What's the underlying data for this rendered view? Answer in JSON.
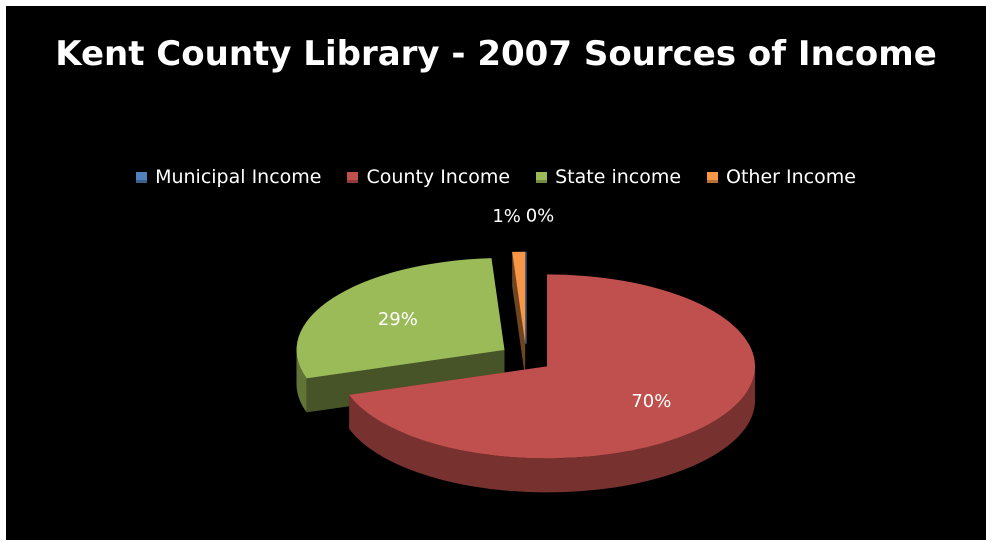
{
  "chart_data": {
    "type": "pie",
    "title": "Kent County Library - 2007 Sources of Income",
    "series": [
      {
        "name": "Municipal Income",
        "value": 0,
        "label": "0%",
        "color": "#4f81bd"
      },
      {
        "name": "County Income",
        "value": 70,
        "label": "70%",
        "color": "#c0504d"
      },
      {
        "name": "State income",
        "value": 29,
        "label": "29%",
        "color": "#9bbb59"
      },
      {
        "name": "Other Income",
        "value": 1,
        "label": "1%",
        "color": "#f79646"
      }
    ],
    "legend_position": "top",
    "exploded": true,
    "style": "3d"
  }
}
